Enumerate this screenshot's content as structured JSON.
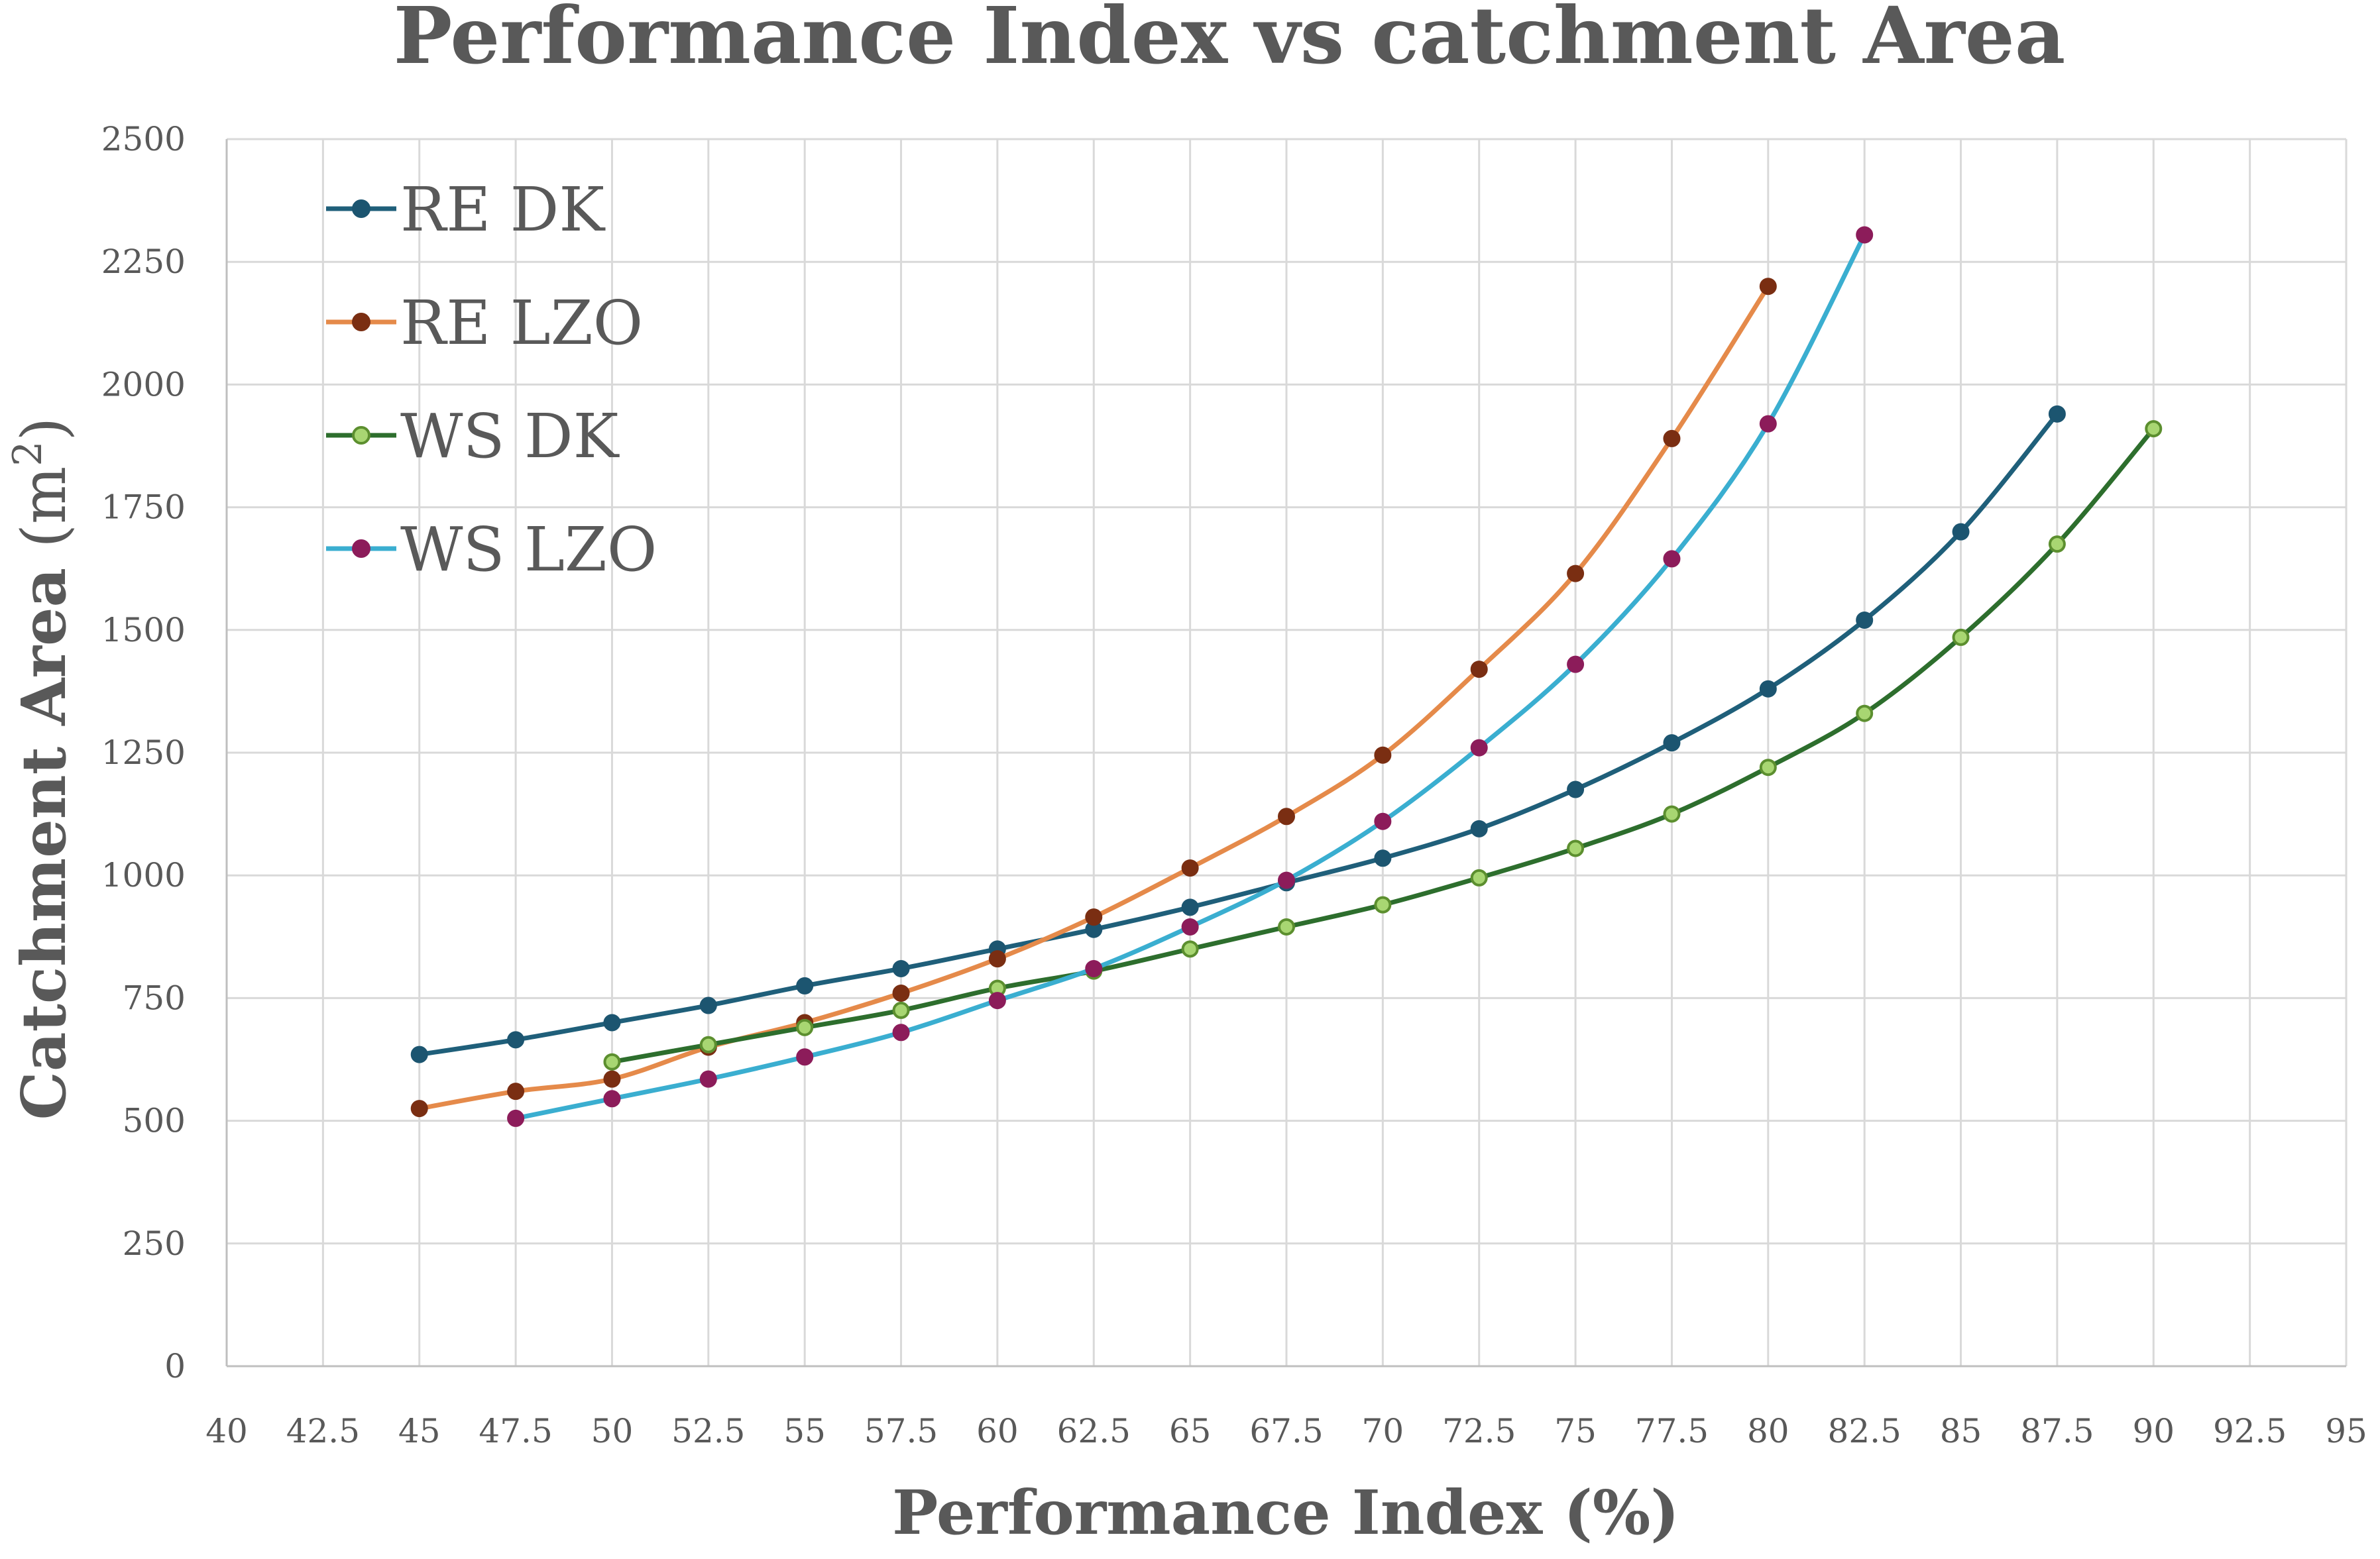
{
  "chart_data": {
    "type": "line",
    "title": "Performance Index vs catchment Area",
    "xlabel": "Performance Index (%)",
    "ylabel": "Catchment Area",
    "ylabel_unit_base": "(m",
    "ylabel_unit_sup": "2",
    "ylabel_unit_close": ")",
    "xlim": [
      40,
      95
    ],
    "ylim": [
      0,
      2500
    ],
    "x_ticks": [
      "40",
      "42.5",
      "45",
      "47.5",
      "50",
      "52.5",
      "55",
      "57.5",
      "60",
      "62.5",
      "65",
      "67.5",
      "70",
      "72.5",
      "75",
      "77.5",
      "80",
      "82.5",
      "85",
      "87.5",
      "90",
      "92.5",
      "95"
    ],
    "y_ticks": [
      "0",
      "250",
      "500",
      "750",
      "1000",
      "1250",
      "1500",
      "1750",
      "2000",
      "2250",
      "2500"
    ],
    "grid": true,
    "legend_position": "top-left",
    "series": [
      {
        "name": "RE DK",
        "line_color": "#1f5f7a",
        "marker_fill": "#1c5570",
        "marker_stroke": "#1c5570",
        "x": [
          45,
          47.5,
          50,
          52.5,
          55,
          57.5,
          60,
          62.5,
          65,
          67.5,
          70,
          72.5,
          75,
          77.5,
          80,
          82.5,
          85,
          87.5
        ],
        "y": [
          635,
          665,
          700,
          735,
          775,
          810,
          850,
          890,
          935,
          985,
          1035,
          1095,
          1175,
          1270,
          1380,
          1520,
          1700,
          1940
        ]
      },
      {
        "name": "RE LZO",
        "line_color": "#e58a4a",
        "marker_fill": "#7a2e12",
        "marker_stroke": "#7a2e12",
        "x": [
          45,
          47.5,
          50,
          52.5,
          55,
          57.5,
          60,
          62.5,
          65,
          67.5,
          70,
          72.5,
          75,
          77.5,
          80
        ],
        "y": [
          525,
          560,
          585,
          650,
          700,
          760,
          830,
          915,
          1015,
          1120,
          1245,
          1420,
          1615,
          1890,
          2200
        ]
      },
      {
        "name": "WS DK",
        "line_color": "#2d6e2d",
        "marker_fill": "#a8d672",
        "marker_stroke": "#5c8f2f",
        "x": [
          50,
          52.5,
          55,
          57.5,
          60,
          62.5,
          65,
          67.5,
          70,
          72.5,
          75,
          77.5,
          80,
          82.5,
          85,
          87.5,
          90
        ],
        "y": [
          620,
          655,
          690,
          725,
          770,
          805,
          850,
          895,
          940,
          995,
          1055,
          1125,
          1220,
          1330,
          1485,
          1675,
          1910
        ]
      },
      {
        "name": "WS LZO",
        "line_color": "#3aaed0",
        "marker_fill": "#8c1c5a",
        "marker_stroke": "#8c1c5a",
        "x": [
          47.5,
          50,
          52.5,
          55,
          57.5,
          60,
          62.5,
          65,
          67.5,
          70,
          72.5,
          75,
          77.5,
          80,
          82.5
        ],
        "y": [
          505,
          545,
          585,
          630,
          680,
          745,
          810,
          895,
          990,
          1110,
          1260,
          1430,
          1645,
          1920,
          2305
        ]
      }
    ]
  }
}
